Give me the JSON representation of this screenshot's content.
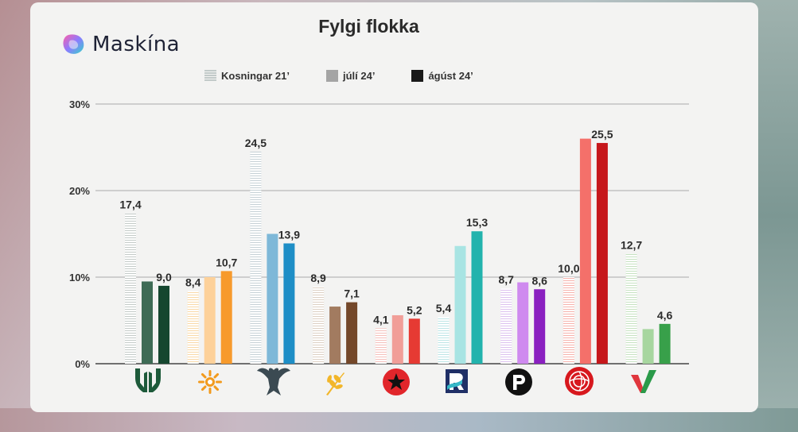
{
  "brand": {
    "name": "Maskína"
  },
  "chart_data": {
    "type": "bar",
    "title": "Fylgi flokka",
    "yticks": [
      "0%",
      "10%",
      "20%",
      "30%"
    ],
    "ylim": [
      0,
      30
    ],
    "grid": true,
    "legend_position": "top",
    "series": [
      {
        "name": "Kosningar 21’",
        "style": "striped"
      },
      {
        "name": "júlí 24’",
        "style": "light"
      },
      {
        "name": "ágúst 24’",
        "style": "dark"
      }
    ],
    "categories": [
      {
        "icon": "green-tree-icon",
        "values": [
          17.4,
          9.5,
          9.0
        ],
        "labels": [
          "17,4",
          "",
          "9,0"
        ],
        "colors": [
          "#c4cbc8",
          "#3e6b55",
          "#15472f"
        ]
      },
      {
        "icon": "orange-sun-icon",
        "values": [
          8.4,
          10.0,
          10.7
        ],
        "labels": [
          "8,4",
          "",
          "10,7"
        ],
        "colors": [
          "#f9d9a8",
          "#fdd19a",
          "#f79a2c"
        ]
      },
      {
        "icon": "falcon-icon",
        "values": [
          24.5,
          15.0,
          13.9
        ],
        "labels": [
          "24,5",
          "",
          "13,9"
        ],
        "colors": [
          "#c6d1d6",
          "#7eb8d8",
          "#1e8ec6"
        ]
      },
      {
        "icon": "wheat-icon",
        "values": [
          8.9,
          6.6,
          7.1
        ],
        "labels": [
          "8,9",
          "",
          "7,1"
        ],
        "colors": [
          "#ddd0c4",
          "#a27b60",
          "#74482a"
        ]
      },
      {
        "icon": "red-star-icon",
        "values": [
          4.1,
          5.6,
          5.2
        ],
        "labels": [
          "4,1",
          "",
          "5,2"
        ],
        "colors": [
          "#f5c0bc",
          "#f19e98",
          "#e63a33"
        ]
      },
      {
        "icon": "reform-r-icon",
        "values": [
          5.4,
          13.6,
          15.3
        ],
        "labels": [
          "5,4",
          "",
          "15,3"
        ],
        "colors": [
          "#bde5e6",
          "#a8e4e3",
          "#22b3ad"
        ]
      },
      {
        "icon": "pirate-p-icon",
        "values": [
          8.7,
          9.4,
          8.6
        ],
        "labels": [
          "8,7",
          "",
          "8,6"
        ],
        "colors": [
          "#ddc2ef",
          "#cf8aef",
          "#8a20c0"
        ]
      },
      {
        "icon": "red-rose-icon",
        "values": [
          10.0,
          26.0,
          25.5
        ],
        "labels": [
          "10,0",
          "",
          "25,5"
        ],
        "colors": [
          "#f6b3ad",
          "#f4706a",
          "#c6171b"
        ]
      },
      {
        "icon": "green-v-icon",
        "values": [
          12.7,
          4.0,
          4.6
        ],
        "labels": [
          "12,7",
          "",
          "4,6"
        ],
        "colors": [
          "#c7e2c2",
          "#a7d69f",
          "#38a04a"
        ]
      }
    ]
  }
}
